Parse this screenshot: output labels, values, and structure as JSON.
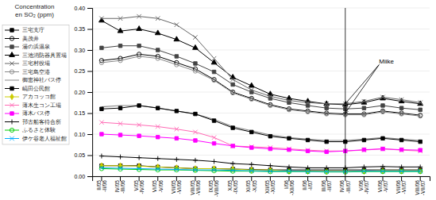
{
  "chart_data": {
    "type": "line",
    "title": "Concentration",
    "subtitle": "en SO₂ (ppm)",
    "categories": [
      "II/05\n-II/06",
      "IV/05\n-III/06",
      "V/05\n-IV/06",
      "VI/05\n-V/06",
      "VII/05\n-VI/06",
      "VIII/05\n-VII/06",
      "IX/05\n-VIII/06",
      "X/05\n-IX/05",
      "XI/05\n-X/05",
      "XII/05\n-XI/05",
      "I/06\n-XII/06",
      "II/06\n-I/07",
      "III/06\n-II/07",
      "IV/06\n-III/07",
      "V/06\n-IV/07",
      "VI/06\n-V/07",
      "VII/06\n-VI/07",
      "VIII/06\n-VII/07"
    ],
    "ylim": [
      0.0,
      0.4
    ],
    "yticks": [
      {
        "value": 0.0,
        "label": "0.00"
      },
      0.05,
      {
        "value": 0.1,
        "label": "0.10"
      },
      0.15,
      {
        "value": 0.2,
        "label": "0.20"
      },
      0.25,
      {
        "value": 0.3,
        "label": "0.30"
      },
      0.35,
      {
        "value": 0.4,
        "label": "0.40"
      }
    ],
    "grid": true,
    "legend": "left",
    "line_style": "solid",
    "annotations": [
      {
        "text": "Miike",
        "x": 14.8,
        "y": 0.265,
        "arrows": [
          {
            "x": 13,
            "y": 0.172
          },
          {
            "x": 13,
            "y": 0.15
          }
        ],
        "vline": 13
      }
    ],
    "series": [
      {
        "name": "三宅支庁",
        "color": "#000000",
        "marker": "square",
        "values": [
          0.025,
          0.025,
          0.025,
          0.022,
          0.02,
          0.018,
          0.018,
          0.017,
          0.016,
          0.015,
          0.015,
          0.015,
          0.015,
          0.015,
          0.015,
          0.015,
          0.015,
          0.015
        ]
      },
      {
        "name": "美茂井",
        "color": "#000000",
        "marker": "circle-open",
        "values": [
          0.275,
          0.28,
          0.29,
          0.285,
          0.27,
          0.255,
          0.23,
          0.2,
          0.185,
          0.17,
          0.16,
          0.155,
          0.15,
          0.148,
          0.148,
          0.155,
          0.15,
          0.145
        ]
      },
      {
        "name": "湯の浜温泉",
        "color": "#444444",
        "marker": "square",
        "values": [
          0.305,
          0.31,
          0.31,
          0.3,
          0.285,
          0.268,
          0.248,
          0.218,
          0.2,
          0.185,
          0.175,
          0.168,
          0.162,
          0.16,
          0.162,
          0.168,
          0.162,
          0.158
        ]
      },
      {
        "name": "三池消防器具置場",
        "color": "#000000",
        "marker": "triangle",
        "values": [
          0.37,
          0.345,
          0.35,
          0.34,
          0.325,
          0.305,
          0.27,
          0.235,
          0.215,
          0.195,
          0.185,
          0.178,
          0.172,
          0.17,
          0.175,
          0.185,
          0.178,
          0.172
        ]
      },
      {
        "name": "三宅村役場",
        "color": "#666666",
        "marker": "x",
        "values": [
          0.375,
          0.375,
          0.38,
          0.375,
          0.36,
          0.33,
          0.28,
          0.23,
          0.205,
          0.19,
          0.18,
          0.175,
          0.172,
          0.172,
          0.178,
          0.188,
          0.182,
          0.175
        ]
      },
      {
        "name": "三宅島空港",
        "color": "#888888",
        "marker": "circle-open",
        "values": [
          0.27,
          0.275,
          0.285,
          0.28,
          0.265,
          0.25,
          0.228,
          0.198,
          0.183,
          0.168,
          0.158,
          0.153,
          0.148,
          0.146,
          0.146,
          0.153,
          0.148,
          0.143
        ]
      },
      {
        "name": "御恵神社バス停",
        "color": "#888888",
        "marker": "none",
        "values": [
          0.165,
          0.168,
          0.168,
          0.162,
          0.155,
          0.148,
          0.135,
          0.118,
          0.108,
          0.098,
          0.092,
          0.088,
          0.085,
          0.085,
          0.088,
          0.092,
          0.088,
          0.085
        ]
      },
      {
        "name": "嵪田公民館",
        "color": "#000000",
        "marker": "square",
        "values": [
          0.16,
          0.162,
          0.168,
          0.162,
          0.155,
          0.148,
          0.132,
          0.115,
          0.105,
          0.095,
          0.09,
          0.086,
          0.082,
          0.082,
          0.086,
          0.09,
          0.086,
          0.082
        ]
      },
      {
        "name": "アカコッコ館",
        "color": "#cccc00",
        "marker": "diamond",
        "values": [
          0.025,
          0.025,
          0.024,
          0.022,
          0.02,
          0.018,
          0.018,
          0.017,
          0.015,
          0.015,
          0.012,
          0.012,
          0.012,
          0.012,
          0.012,
          0.013,
          0.013,
          0.013
        ]
      },
      {
        "name": "薄木生コン工場",
        "color": "#ff69b4",
        "marker": "x",
        "values": [
          0.128,
          0.125,
          0.122,
          0.118,
          0.112,
          0.105,
          0.092,
          0.072,
          0.07,
          0.068,
          0.065,
          0.062,
          0.06,
          0.06,
          0.062,
          0.065,
          0.062,
          0.06
        ]
      },
      {
        "name": "薄木バス停",
        "color": "#ff00ff",
        "marker": "square",
        "values": [
          0.1,
          0.098,
          0.096,
          0.093,
          0.09,
          0.085,
          0.078,
          0.072,
          0.068,
          0.065,
          0.063,
          0.06,
          0.058,
          0.06,
          0.063,
          0.065,
          0.063,
          0.062
        ]
      },
      {
        "name": "邘古船客待合所",
        "color": "#000000",
        "marker": "plus",
        "values": [
          0.048,
          0.046,
          0.044,
          0.042,
          0.04,
          0.038,
          0.035,
          0.03,
          0.028,
          0.025,
          0.022,
          0.02,
          0.02,
          0.02,
          0.022,
          0.023,
          0.022,
          0.022
        ]
      },
      {
        "name": "ふるさと体験",
        "color": "#00cc00",
        "marker": "circle-open",
        "values": [
          0.018,
          0.017,
          0.016,
          0.015,
          0.015,
          0.014,
          0.013,
          0.012,
          0.012,
          0.011,
          0.011,
          0.011,
          0.01,
          0.01,
          0.011,
          0.011,
          0.011,
          0.011
        ]
      },
      {
        "name": "伊ケ谷老人福祉館",
        "color": "#00aaff",
        "marker": "x",
        "values": [
          0.02,
          0.019,
          0.018,
          0.017,
          0.016,
          0.015,
          0.015,
          0.014,
          0.013,
          0.012,
          0.012,
          0.011,
          0.011,
          0.011,
          0.012,
          0.012,
          0.012,
          0.012
        ]
      }
    ]
  }
}
